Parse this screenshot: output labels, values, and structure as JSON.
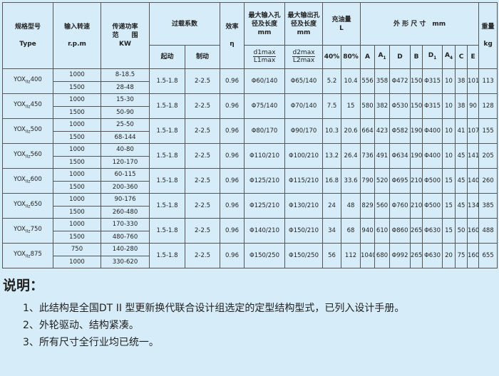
{
  "header": {
    "type_cn": "规格型号",
    "type_en": "Type",
    "speed_cn": "输入转速",
    "speed_en": "r.p.m",
    "power_cn1": "传递功率",
    "power_cn2": "范　　围",
    "power_en": "KW",
    "overload": "过载系数",
    "start": "起动",
    "brake": "制动",
    "efficiency": "效率",
    "eta": "η",
    "in_bore": "最大输入孔径及长度mm",
    "in_num": "d1max",
    "in_den": "L1max",
    "out_bore": "最大输出孔径及长度mm",
    "out_num": "d2max",
    "out_den": "L2max",
    "oil": "充油量",
    "oil_unit": "L",
    "oil40": "40%",
    "oil80": "80%",
    "dims": "外 形 尺 寸　mm",
    "A": "A",
    "A1": "A",
    "A1_sub": "1",
    "D": "D",
    "B": "B",
    "D1": "D",
    "D1_sub": "1",
    "A4": "A",
    "A4_sub": "4",
    "C": "C",
    "E": "E",
    "weight": "重量",
    "weight_unit": "kg"
  },
  "rows": [
    {
      "prefix": "YOX",
      "sub": "IIz",
      "size": "400",
      "speeds": [
        "1000",
        "1500"
      ],
      "powers": [
        "8-18.5",
        "28-48"
      ],
      "start": "1.5-1.8",
      "brake": "2-2.5",
      "eff": "0.96",
      "in": "Φ60/140",
      "out": "Φ65/140",
      "o40": "5.2",
      "o80": "10.4",
      "A": "556",
      "A1": "358",
      "D": "Φ472",
      "B": "150",
      "D1": "Φ315",
      "A4": "10",
      "C": "38",
      "E": "101",
      "kg": "113"
    },
    {
      "prefix": "YOX",
      "sub": "IIz",
      "size": "450",
      "speeds": [
        "1000",
        "1500"
      ],
      "powers": [
        "15-30",
        "50-90"
      ],
      "start": "1.5-1.8",
      "brake": "2-2.5",
      "eff": "0.96",
      "in": "Φ75/140",
      "out": "Φ70/140",
      "o40": "7.5",
      "o80": "15",
      "A": "580",
      "A1": "382",
      "D": "Φ530",
      "B": "150",
      "D1": "Φ315",
      "A4": "10",
      "C": "38",
      "E": "90",
      "kg": "128"
    },
    {
      "prefix": "YOX",
      "sub": "IIz",
      "size": "500",
      "speeds": [
        "1000",
        "1500"
      ],
      "powers": [
        "25-50",
        "68-144"
      ],
      "start": "1.5-1.8",
      "brake": "2-2.5",
      "eff": "0.96",
      "in": "Φ80/170",
      "out": "Φ90/170",
      "o40": "10.3",
      "o80": "20.6",
      "A": "664",
      "A1": "423",
      "D": "Φ582",
      "B": "190",
      "D1": "Φ400",
      "A4": "10",
      "C": "41",
      "E": "107",
      "kg": "155"
    },
    {
      "prefix": "YOX",
      "sub": "IIz",
      "size": "560",
      "speeds": [
        "1000",
        "1500"
      ],
      "powers": [
        "40-80",
        "120-170"
      ],
      "start": "1.5-1.8",
      "brake": "2-2.5",
      "eff": "0.96",
      "in": "Φ110/210",
      "out": "Φ100/210",
      "o40": "13.2",
      "o80": "26.4",
      "A": "736",
      "A1": "491",
      "D": "Φ634",
      "B": "190",
      "D1": "Φ400",
      "A4": "10",
      "C": "45",
      "E": "141",
      "kg": "205"
    },
    {
      "prefix": "YOX",
      "sub": "IIz",
      "size": "600",
      "speeds": [
        "1000",
        "1500"
      ],
      "powers": [
        "60-115",
        "200-360"
      ],
      "start": "1.5-1.8",
      "brake": "2-2.5",
      "eff": "0.96",
      "in": "Φ125/210",
      "out": "Φ115/210",
      "o40": "16.8",
      "o80": "33.6",
      "A": "790",
      "A1": "520",
      "D": "Φ695",
      "B": "210",
      "D1": "Φ500",
      "A4": "15",
      "C": "45",
      "E": "140",
      "kg": "260"
    },
    {
      "prefix": "YOX",
      "sub": "IIz",
      "size": "650",
      "speeds": [
        "1000",
        "1500"
      ],
      "powers": [
        "90-176",
        "260-480"
      ],
      "start": "1.5-1.8",
      "brake": "2-2.5",
      "eff": "0.96",
      "in": "Φ125/210",
      "out": "Φ130/210",
      "o40": "24",
      "o80": "48",
      "A": "829",
      "A1": "560",
      "D": "Φ760",
      "B": "210",
      "D1": "Φ500",
      "A4": "15",
      "C": "45",
      "E": "134",
      "kg": "385"
    },
    {
      "prefix": "YOX",
      "sub": "IIz",
      "size": "750",
      "speeds": [
        "1000",
        "1500"
      ],
      "powers": [
        "170-330",
        "480-760"
      ],
      "start": "1.5-1.8",
      "brake": "2-2.5",
      "eff": "0.96",
      "in": "Φ140/210",
      "out": "Φ150/210",
      "o40": "34",
      "o80": "68",
      "A": "940",
      "A1": "610",
      "D": "Φ860",
      "B": "265",
      "D1": "Φ630",
      "A4": "15",
      "C": "50",
      "E": "160",
      "kg": "488"
    },
    {
      "prefix": "YOX",
      "sub": "IIz",
      "size": "875",
      "speeds": [
        "750",
        "1000"
      ],
      "powers": [
        "140-280",
        "330-620"
      ],
      "start": "1.5-1.8",
      "brake": "2-2.5",
      "eff": "0.96",
      "in": "Φ150/250",
      "out": "Φ150/250",
      "o40": "56",
      "o80": "112",
      "A": "1040",
      "A1": "680",
      "D": "Φ992",
      "B": "265",
      "D1": "Φ630",
      "A4": "20",
      "C": "75",
      "E": "160",
      "kg": "655"
    }
  ],
  "notes": {
    "title": "说明：",
    "items": [
      "1、此结构是全国DT II 型更新换代联合设计组选定的定型结构型式，已列入设计手册。",
      "2、外轮驱动、结构紧凑。",
      "3、所有尺寸全行业均已统一。"
    ]
  }
}
